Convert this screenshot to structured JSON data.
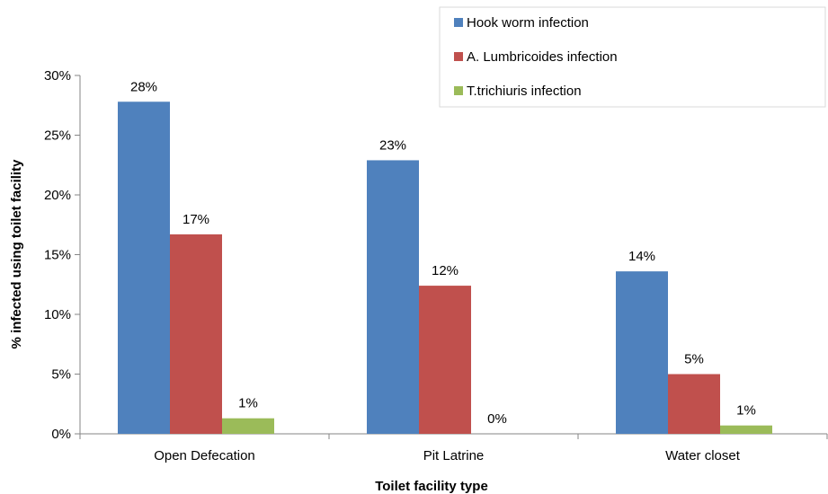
{
  "chart_data": {
    "type": "bar",
    "title": "",
    "xlabel": "Toilet facility type",
    "ylabel": "% infected using toilet facility",
    "categories": [
      "Open Defecation",
      "Pit Latrine",
      "Water closet"
    ],
    "ylim": [
      0,
      30
    ],
    "yticks": [
      0,
      5,
      10,
      15,
      20,
      25,
      30
    ],
    "ytick_labels": [
      "0%",
      "5%",
      "10%",
      "15%",
      "20%",
      "25%",
      "30%"
    ],
    "grid": false,
    "legend_position": "top-right",
    "series": [
      {
        "name": "Hook worm infection",
        "color": "#4F81BD",
        "values": [
          27.8,
          22.9,
          13.6
        ],
        "labels": [
          "28%",
          "23%",
          "14%"
        ]
      },
      {
        "name": "A. Lumbricoides infection",
        "color": "#C0504D",
        "values": [
          16.7,
          12.4,
          5.0
        ],
        "labels": [
          "17%",
          "12%",
          "5%"
        ]
      },
      {
        "name": "T.trichiuris  infection",
        "color": "#9BBB59",
        "values": [
          1.3,
          0.0,
          0.7
        ],
        "labels": [
          "1%",
          "0%",
          "1%"
        ]
      }
    ]
  }
}
